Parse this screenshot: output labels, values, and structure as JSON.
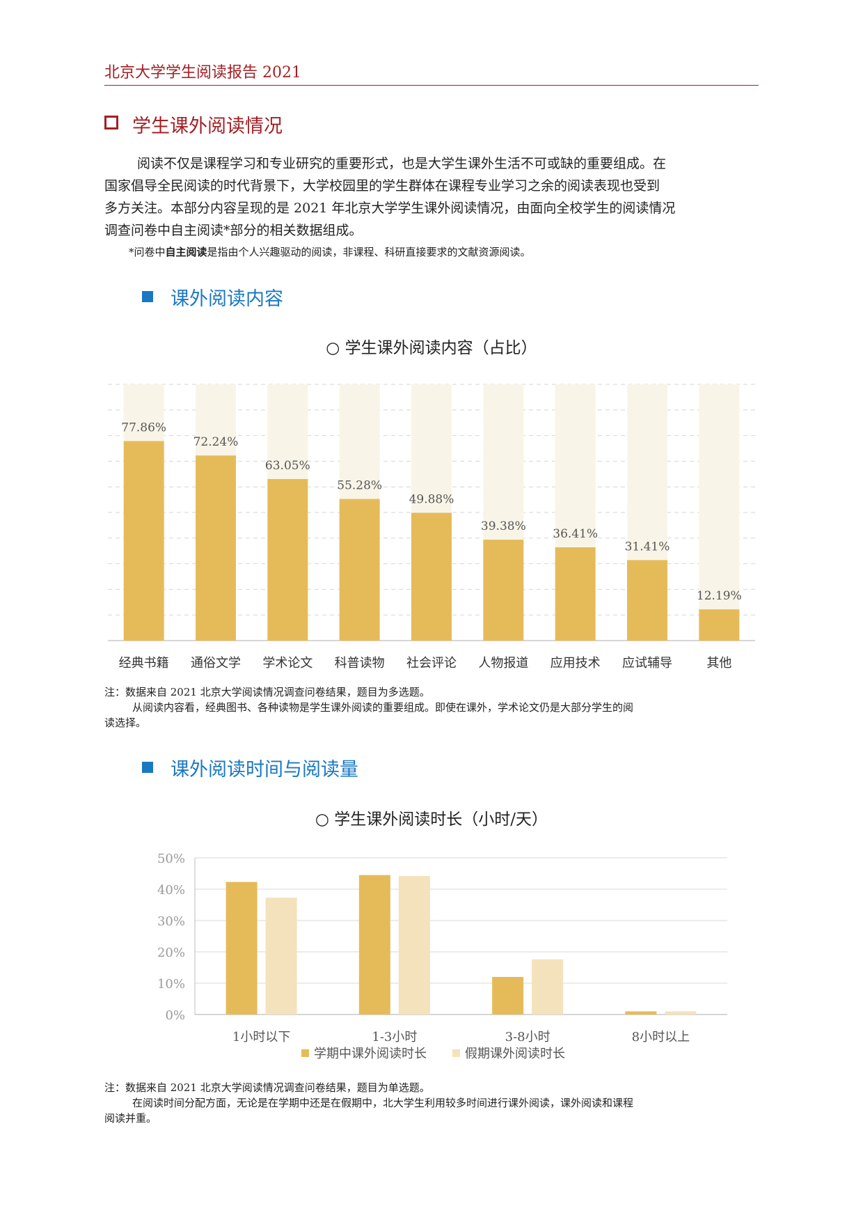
{
  "header": {
    "title": "北京大学学生阅读报告  2021"
  },
  "section": {
    "title": "学生课外阅读情况"
  },
  "intro": {
    "lines": [
      "阅读不仅是课程学习和专业研究的重要形式，也是大学生课外生活不可或缺的重要组成。在",
      "国家倡导全民阅读的时代背景下，大学校园里的学生群体在课程专业学习之余的阅读表现也受到",
      "多方关注。本部分内容呈现的是 2021 年北京大学学生课外阅读情况，由面向全校学生的阅读情况",
      "调查问卷中自主阅读*部分的相关数据组成。"
    ]
  },
  "footnote": {
    "prefix": "*问卷中",
    "bold": "自主阅读",
    "suffix": "是指由个人兴趣驱动的阅读，非课程、科研直接要求的文献资源阅读。"
  },
  "subsections": [
    {
      "title": "课外阅读内容"
    },
    {
      "title": "课外阅读时间与阅读量"
    }
  ],
  "notes": {
    "chart1": [
      "注：数据来自 2021 北京大学阅读情况调查问卷结果，题目为多选题。",
      "从阅读内容看，经典图书、各种读物是学生课外阅读的重要组成。即使在课外，学术论文仍是大部分学生的阅",
      "读选择。"
    ],
    "chart2": [
      "注：数据来自 2021 北京大学阅读情况调查问卷结果，题目为单选题。",
      "在阅读时间分配方面，无论是在学期中还是在假期中，北大学生利用较多时间进行课外阅读，课外阅读和课程",
      "阅读并重。"
    ]
  },
  "colors": {
    "accent_red": "#a31f24",
    "accent_blue": "#1a78c2",
    "bar_gold": "#e5bb5a",
    "bar_light": "#f4e2bc",
    "bg_column": "#f8f5e8"
  },
  "chart_data": [
    {
      "type": "bar",
      "title": "○ 学生课外阅读内容（占比）",
      "categories": [
        "经典书籍",
        "通俗文学",
        "学术论文",
        "科普读物",
        "社会评论",
        "人物报道",
        "应用技术",
        "应试辅导",
        "其他"
      ],
      "values": [
        77.86,
        72.24,
        63.05,
        55.28,
        49.88,
        39.38,
        36.41,
        31.41,
        12.19
      ],
      "value_labels": [
        "77.86%",
        "72.24%",
        "63.05%",
        "55.28%",
        "49.88%",
        "39.38%",
        "36.41%",
        "31.41%",
        "12.19%"
      ],
      "ylim": [
        0,
        100
      ],
      "grid": true,
      "legend": "none"
    },
    {
      "type": "bar",
      "title": "○ 学生课外阅读时长（小时/天）",
      "categories": [
        "1小时以下",
        "1-3小时",
        "3-8小时",
        "8小时以上"
      ],
      "series": [
        {
          "name": "学期中课外阅读时长",
          "values": [
            42.3,
            44.5,
            12.0,
            1.0
          ]
        },
        {
          "name": "假期课外阅读时长",
          "values": [
            37.3,
            44.2,
            17.6,
            1.0
          ]
        }
      ],
      "y_ticks": [
        "0%",
        "10%",
        "20%",
        "30%",
        "40%",
        "50%"
      ],
      "ylim": [
        0,
        50
      ],
      "grid": true,
      "legend": "bottom"
    }
  ]
}
